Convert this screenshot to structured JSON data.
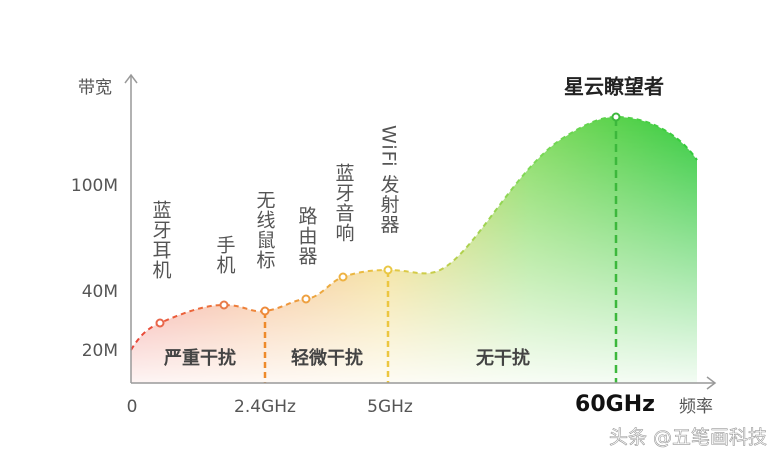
{
  "title": "星云瞭望者",
  "y_axis": {
    "label": "带宽",
    "ticks": [
      "100M",
      "40M",
      "20M"
    ]
  },
  "x_axis": {
    "label": "频率",
    "ticks": [
      "0",
      "2.4GHz",
      "5GHz",
      "60GHz"
    ]
  },
  "devices": [
    "蓝牙耳机",
    "手机",
    "无线鼠标",
    "路由器",
    "蓝牙音响",
    "WiFi 发射器"
  ],
  "zones": [
    "严重干扰",
    "轻微干扰",
    "无干扰"
  ],
  "watermark": "头条 @五笔画科技"
}
